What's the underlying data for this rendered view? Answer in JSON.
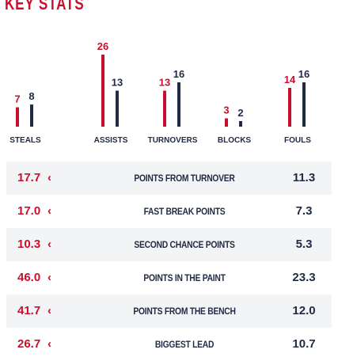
{
  "title": "KEY STATS",
  "colors": {
    "team_a": "#c8102e",
    "team_b": "#1f2a44",
    "row_shade": "#f3f4f6"
  },
  "chart_data": {
    "type": "bar",
    "categories": [
      "STEALS",
      "ASSISTS",
      "TURNOVERS",
      "BLOCKS",
      "FOULS"
    ],
    "series": [
      {
        "values": [
          7,
          26,
          13,
          3,
          14
        ]
      },
      {
        "values": [
          8,
          13,
          16,
          2,
          16
        ]
      }
    ]
  },
  "table": {
    "rows": [
      {
        "label": "POINTS FROM TURNOVER",
        "left": "17.7",
        "right": "11.3",
        "arrow": "‹"
      },
      {
        "label": "FAST BREAK POINTS",
        "left": "17.0",
        "right": "7.3",
        "arrow": "‹"
      },
      {
        "label": "SECOND CHANCE POINTS",
        "left": "10.3",
        "right": "5.3",
        "arrow": "‹"
      },
      {
        "label": "POINTS IN THE PAINT",
        "left": "46.0",
        "right": "23.3",
        "arrow": "‹"
      },
      {
        "label": "POINTS FROM THE BENCH",
        "left": "41.7",
        "right": "12.0",
        "arrow": "‹"
      },
      {
        "label": "BIGGEST LEAD",
        "left": "26.7",
        "right": "10.7",
        "arrow": "‹"
      }
    ]
  }
}
